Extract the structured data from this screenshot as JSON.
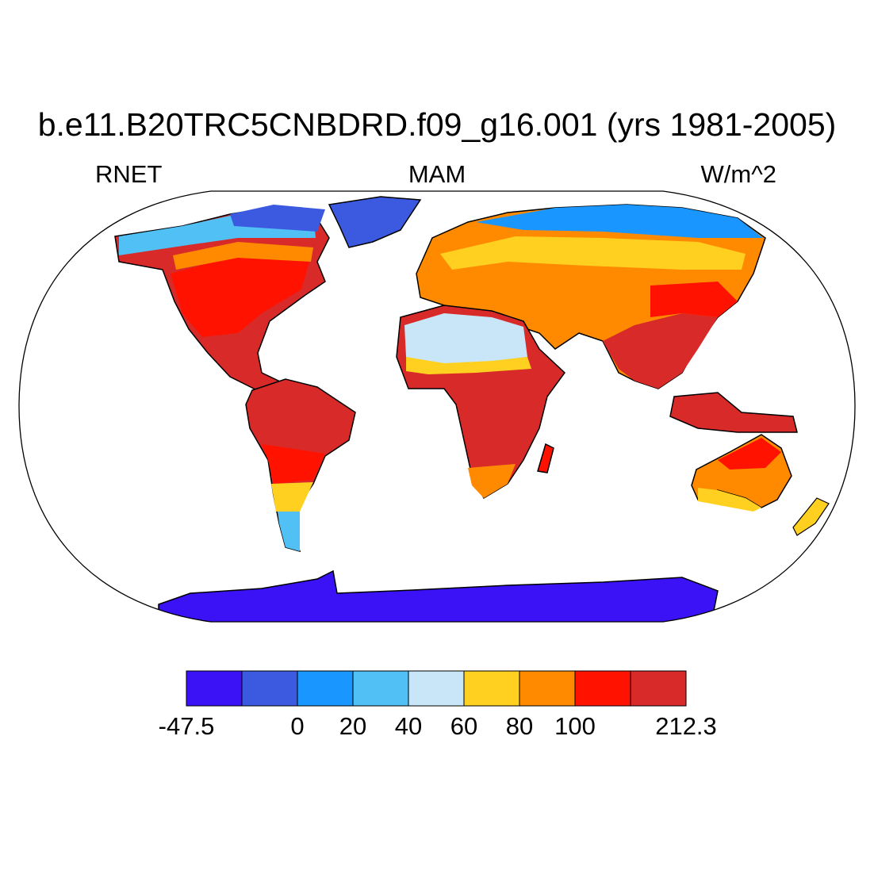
{
  "title": "b.e11.B20TRC5CNBDRD.f09_g16.001 (yrs 1981-2005)",
  "left_string": "RNET",
  "center_string": "MAM",
  "right_string": "W/m^2",
  "projection": "Robinson",
  "colorbar": {
    "colors": [
      "#3a12f5",
      "#3b5ae0",
      "#1996ff",
      "#50c0f5",
      "#c8e6f8",
      "#ffd020",
      "#ff8a00",
      "#ff1200",
      "#d92a2a"
    ],
    "labels": [
      {
        "text": "-47.5",
        "boundary": 0
      },
      {
        "text": "0",
        "boundary": 2
      },
      {
        "text": "20",
        "boundary": 3
      },
      {
        "text": "40",
        "boundary": 4
      },
      {
        "text": "60",
        "boundary": 5
      },
      {
        "text": "80",
        "boundary": 6
      },
      {
        "text": "100",
        "boundary": 7
      },
      {
        "text": "212.3",
        "boundary": 9
      }
    ]
  }
}
